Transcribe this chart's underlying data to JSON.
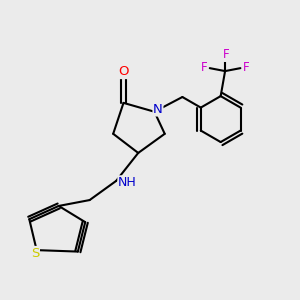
{
  "background_color": "#ebebeb",
  "bond_color": "#000000",
  "atom_colors": {
    "O": "#ff0000",
    "N_ring": "#0000cc",
    "N_amine": "#0000cc",
    "S": "#cccc00",
    "F": "#cc00cc"
  },
  "figsize": [
    3.0,
    3.0
  ],
  "dpi": 100,
  "lw": 1.5
}
